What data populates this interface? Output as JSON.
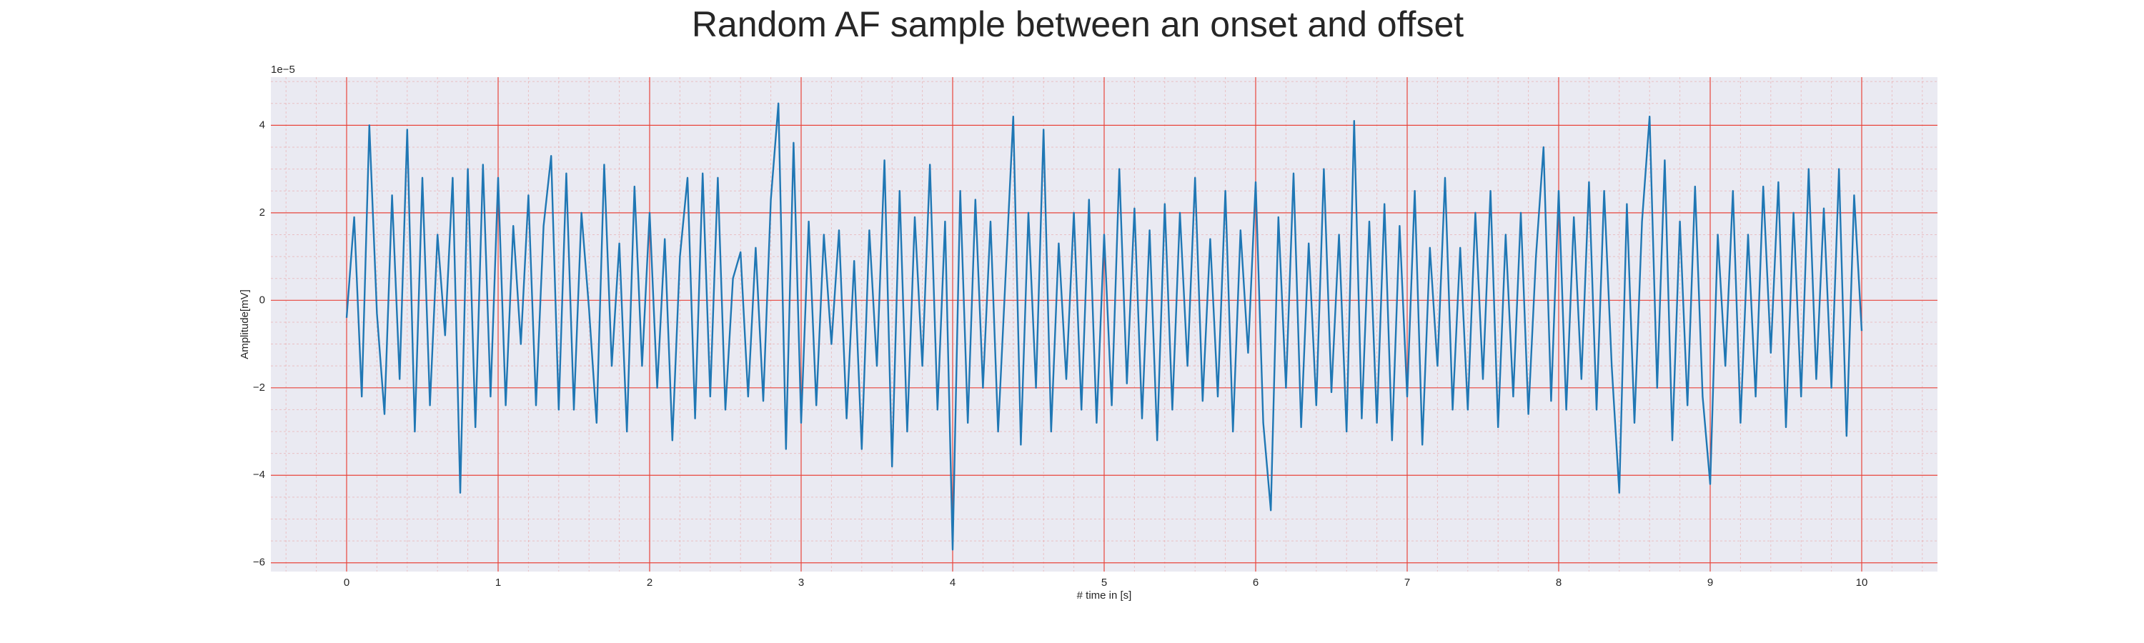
{
  "chart_data": {
    "type": "line",
    "title": "Random AF sample between an onset and offset",
    "xlabel": "# time in [s]",
    "ylabel": "Amplitude[mV]",
    "offset_label": "1e−5",
    "x": [
      0,
      0.05,
      0.1,
      0.15,
      0.2,
      0.25,
      0.3,
      0.35,
      0.4,
      0.45,
      0.5,
      0.55,
      0.6,
      0.65,
      0.7,
      0.75,
      0.8,
      0.85,
      0.9,
      0.95,
      1,
      1.05,
      1.1,
      1.15,
      1.2,
      1.25,
      1.3,
      1.35,
      1.4,
      1.45,
      1.5,
      1.55,
      1.6,
      1.65,
      1.7,
      1.75,
      1.8,
      1.85,
      1.9,
      1.95,
      2,
      2.05,
      2.1,
      2.15,
      2.2,
      2.25,
      2.3,
      2.35,
      2.4,
      2.45,
      2.5,
      2.55,
      2.6,
      2.65,
      2.7,
      2.75,
      2.8,
      2.85,
      2.9,
      2.95,
      3,
      3.05,
      3.1,
      3.15,
      3.2,
      3.25,
      3.3,
      3.35,
      3.4,
      3.45,
      3.5,
      3.55,
      3.6,
      3.65,
      3.7,
      3.75,
      3.8,
      3.85,
      3.9,
      3.95,
      4,
      4.05,
      4.1,
      4.15,
      4.2,
      4.25,
      4.3,
      4.35,
      4.4,
      4.45,
      4.5,
      4.55,
      4.6,
      4.65,
      4.7,
      4.75,
      4.8,
      4.85,
      4.9,
      4.95,
      5,
      5.05,
      5.1,
      5.15,
      5.2,
      5.25,
      5.3,
      5.35,
      5.4,
      5.45,
      5.5,
      5.55,
      5.6,
      5.65,
      5.7,
      5.75,
      5.8,
      5.85,
      5.9,
      5.95,
      6,
      6.05,
      6.1,
      6.15,
      6.2,
      6.25,
      6.3,
      6.35,
      6.4,
      6.45,
      6.5,
      6.55,
      6.6,
      6.65,
      6.7,
      6.75,
      6.8,
      6.85,
      6.9,
      6.95,
      7,
      7.05,
      7.1,
      7.15,
      7.2,
      7.25,
      7.3,
      7.35,
      7.4,
      7.45,
      7.5,
      7.55,
      7.6,
      7.65,
      7.7,
      7.75,
      7.8,
      7.85,
      7.9,
      7.95,
      8,
      8.05,
      8.1,
      8.15,
      8.2,
      8.25,
      8.3,
      8.35,
      8.4,
      8.45,
      8.5,
      8.55,
      8.6,
      8.65,
      8.7,
      8.75,
      8.8,
      8.85,
      8.9,
      8.95,
      9,
      9.05,
      9.1,
      9.15,
      9.2,
      9.25,
      9.3,
      9.35,
      9.4,
      9.45,
      9.5,
      9.55,
      9.6,
      9.65,
      9.7,
      9.75,
      9.8,
      9.85,
      9.9,
      9.95,
      10
    ],
    "series": [
      {
        "color": "#1f77b4",
        "values": [
          -0.4,
          1.9,
          -2.2,
          4.0,
          -0.3,
          -2.6,
          2.4,
          -1.8,
          3.9,
          -3.0,
          2.8,
          -2.4,
          1.5,
          -0.8,
          2.8,
          -4.4,
          3.0,
          -2.9,
          3.1,
          -2.2,
          2.8,
          -2.4,
          1.7,
          -1.0,
          2.4,
          -2.4,
          1.7,
          3.3,
          -2.5,
          2.9,
          -2.5,
          2.0,
          -0.2,
          -2.8,
          3.1,
          -1.5,
          1.3,
          -3.0,
          2.6,
          -1.5,
          2.0,
          -2.0,
          1.4,
          -3.2,
          1.0,
          2.8,
          -2.7,
          2.9,
          -2.2,
          2.8,
          -2.5,
          0.5,
          1.1,
          -2.2,
          1.2,
          -2.3,
          2.3,
          4.5,
          -3.4,
          3.6,
          -2.8,
          1.8,
          -2.4,
          1.5,
          -1.0,
          1.6,
          -2.7,
          0.9,
          -3.4,
          1.6,
          -1.5,
          3.2,
          -3.8,
          2.5,
          -3.0,
          1.9,
          -1.5,
          3.1,
          -2.5,
          1.8,
          -5.7,
          2.5,
          -2.8,
          2.3,
          -2.0,
          1.8,
          -3.0,
          0.6,
          4.2,
          -3.3,
          2.0,
          -2.0,
          3.9,
          -3.0,
          1.3,
          -1.8,
          2.0,
          -2.5,
          2.3,
          -2.8,
          1.5,
          -2.4,
          3.0,
          -1.9,
          2.1,
          -2.7,
          1.6,
          -3.2,
          2.2,
          -2.5,
          2.0,
          -1.5,
          2.8,
          -2.3,
          1.4,
          -2.2,
          2.5,
          -3.0,
          1.6,
          -1.2,
          2.7,
          -2.8,
          -4.8,
          1.9,
          -2.0,
          2.9,
          -2.9,
          1.3,
          -2.4,
          3.0,
          -2.1,
          1.5,
          -3.0,
          4.1,
          -2.7,
          1.8,
          -2.8,
          2.2,
          -3.2,
          1.7,
          -2.2,
          2.5,
          -3.3,
          1.2,
          -1.5,
          2.8,
          -2.5,
          1.2,
          -2.5,
          2.0,
          -1.8,
          2.5,
          -2.9,
          1.5,
          -2.2,
          2.0,
          -2.6,
          1.0,
          3.5,
          -2.3,
          2.5,
          -2.5,
          1.9,
          -1.8,
          2.7,
          -2.5,
          2.5,
          -1.5,
          -4.4,
          2.2,
          -2.8,
          1.8,
          4.2,
          -2.0,
          3.2,
          -3.2,
          1.8,
          -2.4,
          2.6,
          -2.2,
          -4.2,
          1.5,
          -1.5,
          2.5,
          -2.8,
          1.5,
          -2.2,
          2.6,
          -1.2,
          2.7,
          -2.9,
          2.0,
          -2.2,
          3.0,
          -1.8,
          2.1,
          -2.0,
          3.0,
          -3.1,
          2.4,
          -0.7
        ]
      }
    ],
    "xlim": [
      -0.5,
      10.5
    ],
    "ylim": [
      -6.2,
      5.1
    ],
    "xticks": [
      0,
      1,
      2,
      3,
      4,
      5,
      6,
      7,
      8,
      9,
      10
    ],
    "yticks": [
      {
        "value": -6,
        "label": "−6"
      },
      {
        "value": -4,
        "label": "−4"
      },
      {
        "value": -2,
        "label": "−2"
      },
      0,
      2,
      4
    ],
    "grid": true,
    "minor_grid": true,
    "grid_color": "#e8453c",
    "background": "#eaeaf2"
  }
}
